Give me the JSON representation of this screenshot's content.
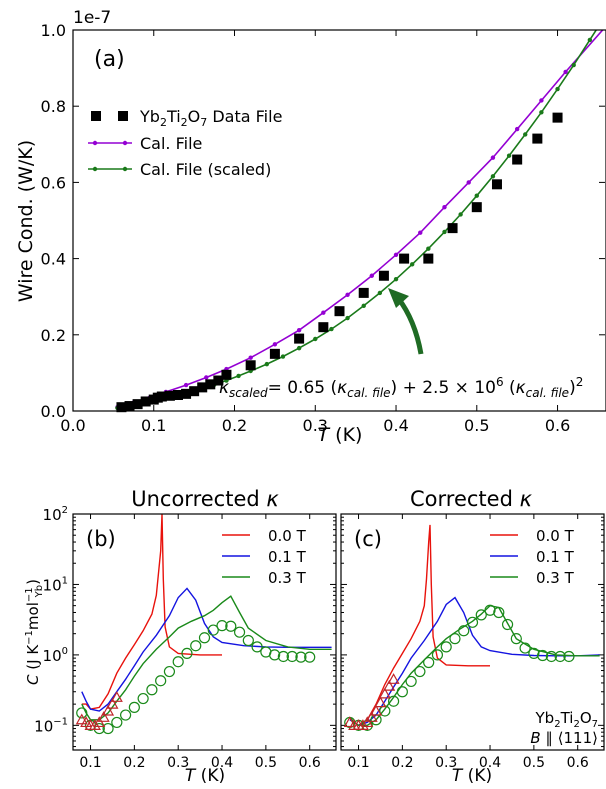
{
  "colors": {
    "cal": "#9400D3",
    "scaled": "#1A7A1A",
    "data": "#000000",
    "field_0_0": "#E8120C",
    "field_0_1": "#1414E0",
    "field_0_3": "#1A8A1A",
    "triangle": "#C0262A",
    "arrow": "#1F6B24"
  },
  "chart_data": [
    {
      "type": "line",
      "panel_label": "(a)",
      "offset_text": "1e-7",
      "xlabel_italic": "T",
      "xlabel_unit": " (K)",
      "ylabel": "Wire Cond. (W/K)",
      "xlim": [
        0,
        0.66
      ],
      "ylim": [
        0,
        1.0
      ],
      "xticks": [
        0,
        0.1,
        0.2,
        0.3,
        0.4,
        0.5,
        0.6
      ],
      "xtick_labels": [
        "0.0",
        "0.1",
        "0.2",
        "0.3",
        "0.4",
        "0.5",
        "0.6"
      ],
      "yticks": [
        0,
        0.2,
        0.4,
        0.6,
        0.8,
        1.0
      ],
      "ytick_labels": [
        "0.0",
        "0.2",
        "0.4",
        "0.6",
        "0.8",
        "1.0"
      ],
      "legend_position": "upper-left",
      "legend": [
        {
          "label_pre": "Yb",
          "sub1": "2",
          "mid": "Ti",
          "sub2": "2",
          "mid2": "O",
          "sub3": "7",
          "post": " Data File"
        },
        {
          "label": "Cal. File"
        },
        {
          "label": "Cal. File (scaled)"
        }
      ],
      "annotation": {
        "text": "κscaled = 0.65 (κcal. file) + 2.5 × 10^6 (κcal. file)^2",
        "kappa": "κ",
        "scaled_sub": "scaled",
        "eq1": "= 0.65 (",
        "cal_sub": "cal. file",
        "eq2": ") + 2.5 × 10",
        "exp6": "6",
        "eq3": " (",
        "eq4": ")",
        "exp2": "2"
      },
      "series": [
        {
          "name": "Yb2Ti2O7 Data File",
          "kind": "scatter",
          "x": [
            0.06,
            0.07,
            0.08,
            0.09,
            0.1,
            0.105,
            0.11,
            0.12,
            0.13,
            0.14,
            0.15,
            0.16,
            0.17,
            0.18,
            0.19,
            0.22,
            0.25,
            0.28,
            0.31,
            0.33,
            0.36,
            0.385,
            0.41,
            0.44,
            0.47,
            0.5,
            0.525,
            0.55,
            0.575,
            0.6
          ],
          "y": [
            0.01,
            0.013,
            0.018,
            0.025,
            0.03,
            0.035,
            0.038,
            0.04,
            0.042,
            0.045,
            0.052,
            0.062,
            0.07,
            0.08,
            0.095,
            0.12,
            0.15,
            0.19,
            0.22,
            0.262,
            0.31,
            0.355,
            0.4,
            0.4,
            0.48,
            0.535,
            0.595,
            0.66,
            0.715,
            0.77
          ]
        },
        {
          "name": "Cal. File",
          "kind": "line-markers",
          "x": [
            0.055,
            0.075,
            0.095,
            0.115,
            0.14,
            0.165,
            0.19,
            0.22,
            0.25,
            0.28,
            0.31,
            0.34,
            0.37,
            0.4,
            0.43,
            0.46,
            0.49,
            0.52,
            0.55,
            0.58,
            0.61,
            0.66
          ],
          "y": [
            0.01,
            0.022,
            0.035,
            0.05,
            0.068,
            0.088,
            0.11,
            0.14,
            0.175,
            0.212,
            0.258,
            0.305,
            0.355,
            0.41,
            0.468,
            0.535,
            0.6,
            0.665,
            0.74,
            0.815,
            0.89,
            1.01
          ]
        },
        {
          "name": "Cal. File (scaled)",
          "kind": "line-markers",
          "x": [
            0.055,
            0.07,
            0.085,
            0.1,
            0.115,
            0.13,
            0.145,
            0.16,
            0.175,
            0.19,
            0.205,
            0.22,
            0.24,
            0.26,
            0.28,
            0.3,
            0.32,
            0.34,
            0.36,
            0.38,
            0.4,
            0.42,
            0.44,
            0.46,
            0.48,
            0.5,
            0.52,
            0.54,
            0.56,
            0.58,
            0.6,
            0.62,
            0.64,
            0.66
          ],
          "y": [
            0.008,
            0.013,
            0.019,
            0.026,
            0.033,
            0.041,
            0.05,
            0.059,
            0.069,
            0.08,
            0.092,
            0.105,
            0.123,
            0.143,
            0.165,
            0.189,
            0.215,
            0.244,
            0.276,
            0.31,
            0.346,
            0.385,
            0.426,
            0.47,
            0.516,
            0.565,
            0.616,
            0.67,
            0.726,
            0.784,
            0.845,
            0.908,
            0.974,
            1.04
          ]
        }
      ]
    },
    {
      "type": "line",
      "panel_label": "(b)",
      "title_text": "Uncorrected ",
      "title_kappa": "κ",
      "xlabel_italic": "T",
      "xlabel_unit": " (K)",
      "ylabel": "C (J K⁻¹ mol⁻¹Yb)",
      "ylabel_C": "C",
      "ylabel_unit": " (J K",
      "ylabel_exp1": "−1",
      "ylabel_mol": "mol",
      "ylabel_exp2": "−1",
      "ylabel_sub": "Yb",
      "ylabel_close": ")",
      "yscale": "log",
      "xlim": [
        0.06,
        0.66
      ],
      "ylim_log10": [
        -1.35,
        2.0
      ],
      "xticks": [
        0.1,
        0.2,
        0.3,
        0.4,
        0.5,
        0.6
      ],
      "xtick_labels": [
        "0.1",
        "0.2",
        "0.3",
        "0.4",
        "0.5",
        "0.6"
      ],
      "ytick_base": "10",
      "ytick_exps": [
        "−1",
        "0",
        "1",
        "2"
      ],
      "legend_position": "upper-right",
      "legend": [
        {
          "label": "0.0 T"
        },
        {
          "label": "0.1 T"
        },
        {
          "label": "0.3 T"
        }
      ],
      "series": [
        {
          "name": "0.0 T",
          "x": [
            0.08,
            0.09,
            0.1,
            0.12,
            0.14,
            0.16,
            0.18,
            0.2,
            0.22,
            0.24,
            0.25,
            0.26,
            0.263,
            0.266,
            0.27,
            0.28,
            0.3,
            0.35,
            0.4
          ],
          "y": [
            0.2,
            0.2,
            0.17,
            0.18,
            0.28,
            0.55,
            0.9,
            1.4,
            2.2,
            3.8,
            7,
            30,
            100,
            12,
            2.5,
            1.3,
            1.05,
            1.0,
            1.0
          ]
        },
        {
          "name": "0.1 T",
          "x": [
            0.08,
            0.09,
            0.1,
            0.12,
            0.14,
            0.16,
            0.18,
            0.2,
            0.22,
            0.25,
            0.28,
            0.3,
            0.32,
            0.34,
            0.36,
            0.38,
            0.4,
            0.45,
            0.5,
            0.55,
            0.6,
            0.65
          ],
          "y": [
            0.3,
            0.22,
            0.17,
            0.16,
            0.2,
            0.3,
            0.45,
            0.7,
            1.1,
            1.9,
            3.6,
            6.5,
            8.8,
            6.0,
            2.8,
            1.8,
            1.5,
            1.35,
            1.3,
            1.28,
            1.28,
            1.28
          ]
        },
        {
          "name": "0.3 T",
          "x": [
            0.08,
            0.09,
            0.1,
            0.12,
            0.14,
            0.16,
            0.18,
            0.2,
            0.22,
            0.25,
            0.28,
            0.3,
            0.33,
            0.36,
            0.38,
            0.4,
            0.42,
            0.44,
            0.46,
            0.5,
            0.55,
            0.6,
            0.65
          ],
          "y": [
            0.2,
            0.15,
            0.12,
            0.12,
            0.15,
            0.22,
            0.32,
            0.5,
            0.75,
            1.2,
            1.8,
            2.4,
            3.0,
            3.6,
            4.3,
            5.5,
            6.8,
            4.0,
            2.4,
            1.6,
            1.3,
            1.2,
            1.2
          ]
        },
        {
          "name": "0.3 T data",
          "kind": "circles",
          "x": [
            0.08,
            0.1,
            0.12,
            0.14,
            0.16,
            0.18,
            0.2,
            0.22,
            0.24,
            0.26,
            0.28,
            0.3,
            0.32,
            0.34,
            0.36,
            0.38,
            0.4,
            0.42,
            0.44,
            0.46,
            0.48,
            0.5,
            0.52,
            0.54,
            0.56,
            0.58,
            0.6
          ],
          "y": [
            0.15,
            0.1,
            0.09,
            0.09,
            0.11,
            0.14,
            0.18,
            0.24,
            0.32,
            0.43,
            0.58,
            0.8,
            1.05,
            1.35,
            1.75,
            2.25,
            2.6,
            2.55,
            2.1,
            1.6,
            1.3,
            1.1,
            1.0,
            0.95,
            0.95,
            0.93,
            0.93
          ]
        },
        {
          "name": "0.0 T data",
          "kind": "triangles",
          "x": [
            0.08,
            0.09,
            0.1,
            0.11,
            0.12,
            0.13,
            0.14,
            0.15,
            0.16
          ],
          "y": [
            0.12,
            0.11,
            0.1,
            0.1,
            0.11,
            0.13,
            0.16,
            0.2,
            0.25
          ]
        }
      ]
    },
    {
      "type": "line",
      "panel_label": "(c)",
      "title_text": "Corrected ",
      "title_kappa": "κ",
      "xlabel_italic": "T",
      "xlabel_unit": " (K)",
      "yscale": "log",
      "xlim": [
        0.06,
        0.66
      ],
      "ylim_log10": [
        -1.35,
        2.0
      ],
      "xticks": [
        0.1,
        0.2,
        0.3,
        0.4,
        0.5,
        0.6
      ],
      "xtick_labels": [
        "0.1",
        "0.2",
        "0.3",
        "0.4",
        "0.5",
        "0.6"
      ],
      "legend_position": "upper-right",
      "legend": [
        {
          "label": "0.0 T"
        },
        {
          "label": "0.1 T"
        },
        {
          "label": "0.3 T"
        }
      ],
      "material": {
        "pre": "Yb",
        "s1": "2",
        "m": "Ti",
        "s2": "2",
        "m2": "O",
        "s3": "7"
      },
      "field_dir": {
        "B": "B",
        "par": " ∥ ⟨111⟩"
      },
      "series": [
        {
          "name": "0.0 T",
          "x": [
            0.08,
            0.09,
            0.1,
            0.12,
            0.14,
            0.16,
            0.18,
            0.2,
            0.22,
            0.24,
            0.25,
            0.255,
            0.26,
            0.263,
            0.266,
            0.27,
            0.28,
            0.3,
            0.35,
            0.4
          ],
          "y": [
            0.13,
            0.11,
            0.1,
            0.12,
            0.2,
            0.38,
            0.65,
            1.05,
            1.7,
            3.0,
            5,
            12,
            40,
            70,
            10,
            1.8,
            0.9,
            0.72,
            0.7,
            0.7
          ]
        },
        {
          "name": "0.1 T",
          "x": [
            0.08,
            0.09,
            0.1,
            0.12,
            0.14,
            0.16,
            0.18,
            0.2,
            0.22,
            0.25,
            0.28,
            0.3,
            0.32,
            0.34,
            0.36,
            0.38,
            0.4,
            0.45,
            0.5,
            0.55,
            0.6,
            0.65
          ],
          "y": [
            0.12,
            0.11,
            0.1,
            0.11,
            0.14,
            0.22,
            0.35,
            0.55,
            0.9,
            1.6,
            3.0,
            5.2,
            6.5,
            4.0,
            1.9,
            1.3,
            1.15,
            1.02,
            0.98,
            0.97,
            0.97,
            1.0
          ]
        },
        {
          "name": "0.3 T",
          "x": [
            0.08,
            0.09,
            0.1,
            0.12,
            0.14,
            0.16,
            0.18,
            0.2,
            0.22,
            0.25,
            0.28,
            0.3,
            0.33,
            0.36,
            0.38,
            0.4,
            0.42,
            0.44,
            0.46,
            0.5,
            0.55,
            0.6,
            0.65
          ],
          "y": [
            0.13,
            0.11,
            0.1,
            0.1,
            0.12,
            0.17,
            0.25,
            0.38,
            0.55,
            0.85,
            1.3,
            1.7,
            2.3,
            3.0,
            3.8,
            5.0,
            4.7,
            2.8,
            1.7,
            1.2,
            1.0,
            0.97,
            0.97
          ]
        },
        {
          "name": "0.3 T data",
          "kind": "circles",
          "x": [
            0.08,
            0.1,
            0.12,
            0.14,
            0.16,
            0.18,
            0.2,
            0.22,
            0.24,
            0.26,
            0.28,
            0.3,
            0.32,
            0.34,
            0.36,
            0.38,
            0.4,
            0.42,
            0.44,
            0.46,
            0.48,
            0.5,
            0.52,
            0.54,
            0.56,
            0.58
          ],
          "y": [
            0.11,
            0.1,
            0.1,
            0.12,
            0.16,
            0.22,
            0.3,
            0.42,
            0.58,
            0.78,
            1.0,
            1.3,
            1.7,
            2.2,
            2.9,
            3.7,
            4.3,
            4.0,
            2.7,
            1.7,
            1.25,
            1.05,
            0.98,
            0.95,
            0.95,
            0.95
          ]
        },
        {
          "name": "0.0 T data",
          "kind": "triangles",
          "x": [
            0.08,
            0.09,
            0.1,
            0.11,
            0.12,
            0.13,
            0.14,
            0.15,
            0.16,
            0.17,
            0.18
          ],
          "y": [
            0.11,
            0.1,
            0.1,
            0.1,
            0.11,
            0.13,
            0.16,
            0.21,
            0.28,
            0.36,
            0.45
          ]
        }
      ]
    }
  ]
}
